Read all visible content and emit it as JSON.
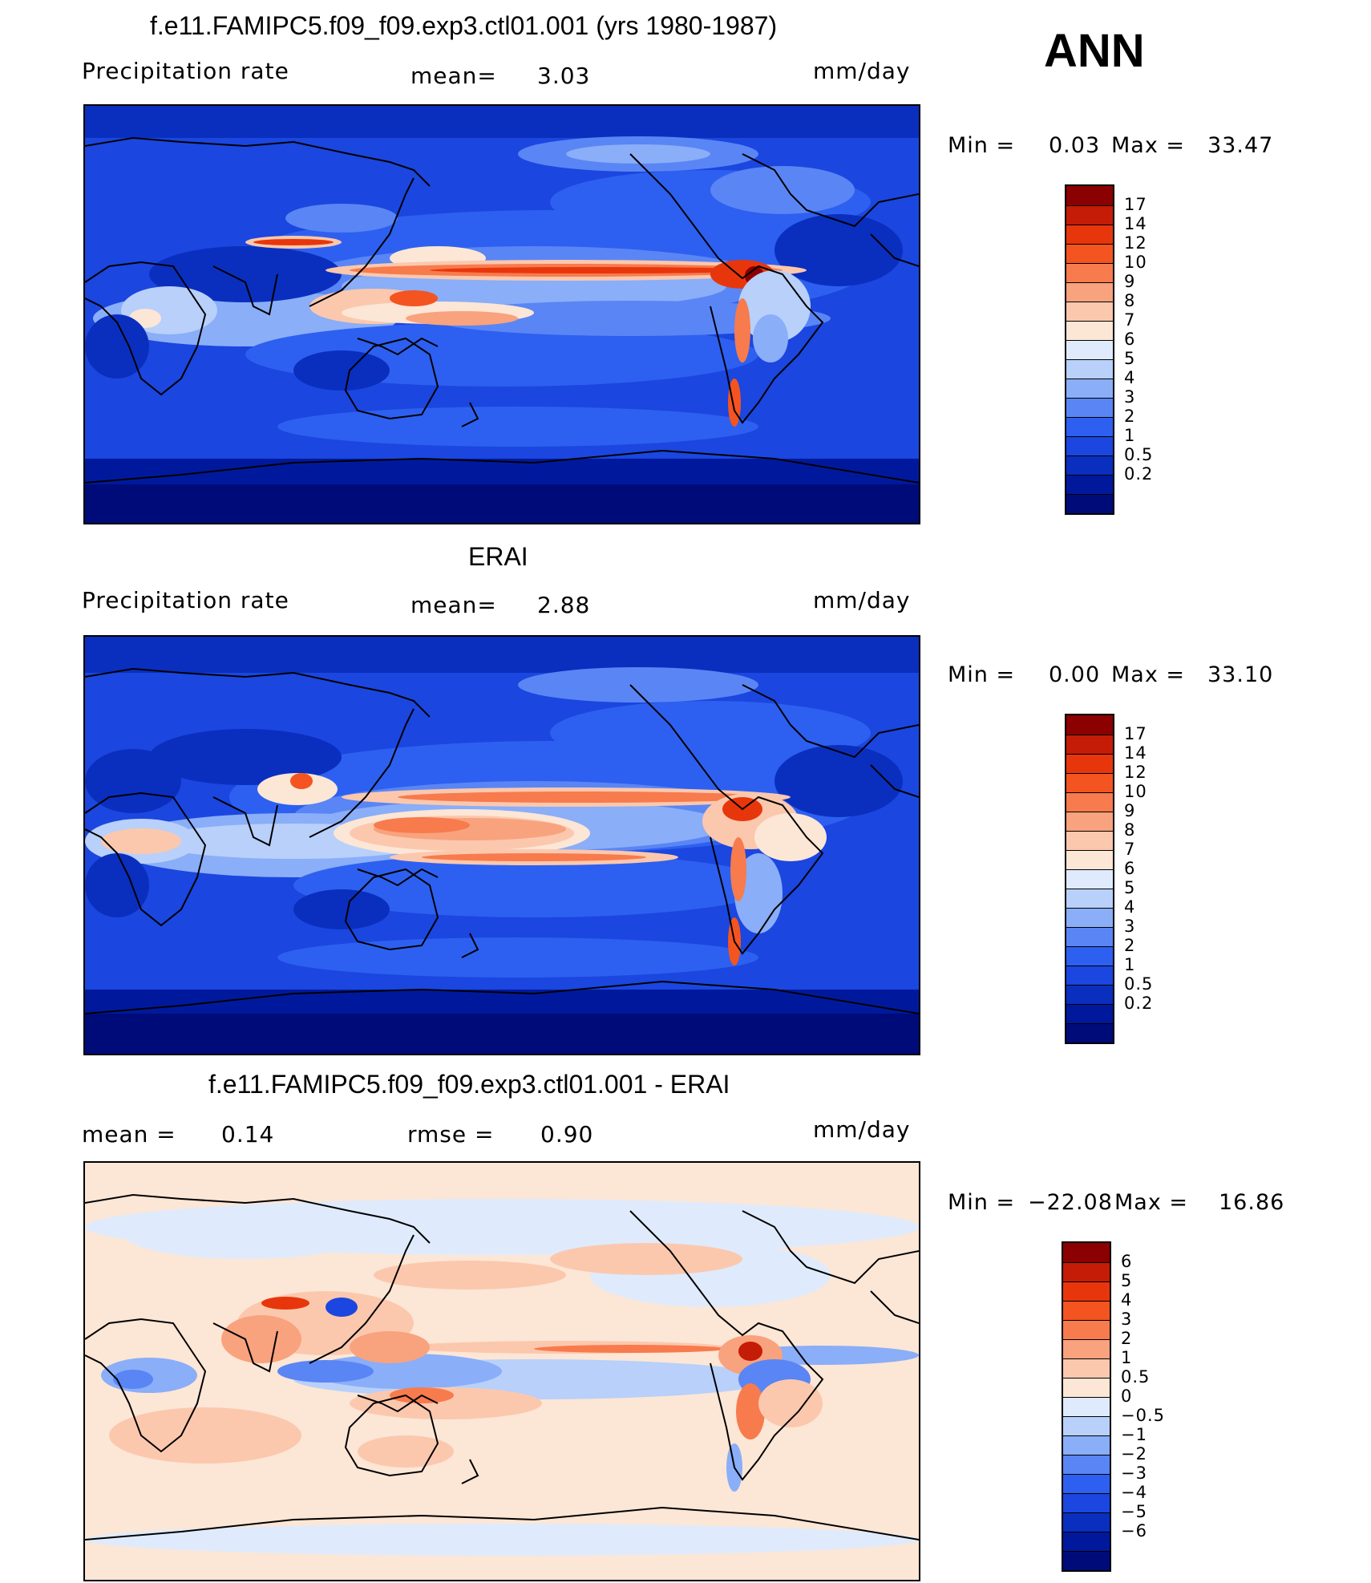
{
  "season": "ANN",
  "units": "mm/day",
  "panels": [
    {
      "title": "f.e11.FAMIPC5.f09_f09.exp3.ctl01.001 (yrs 1980-1987)",
      "left_label": "Precipitation rate",
      "mid_label": "mean=",
      "mid_value": "3.03",
      "right_label": "mm/day",
      "min_label": "Min =",
      "min_value": "0.03",
      "max_label": "Max =",
      "max_value": "33.47",
      "colors": [
        "#000b7a",
        "#00199c",
        "#0a2fbf",
        "#1b46df",
        "#2d60f0",
        "#5a85f5",
        "#8aaef8",
        "#b8d0fa",
        "#dfebfc",
        "#fce6d6",
        "#fbc8ae",
        "#f9a27e",
        "#f77b4d",
        "#f4541f",
        "#e8360c",
        "#c41c06",
        "#8b0000"
      ],
      "labels": [
        "17",
        "14",
        "12",
        "10",
        "9",
        "8",
        "7",
        "6",
        "5",
        "4",
        "3",
        "2",
        "1",
        "0.5",
        "0.2"
      ]
    },
    {
      "title": "ERAI",
      "left_label": "Precipitation rate",
      "mid_label": "mean=",
      "mid_value": "2.88",
      "right_label": "mm/day",
      "min_label": "Min =",
      "min_value": "0.00",
      "max_label": "Max =",
      "max_value": "33.10",
      "colors": [
        "#000b7a",
        "#00199c",
        "#0a2fbf",
        "#1b46df",
        "#2d60f0",
        "#5a85f5",
        "#8aaef8",
        "#b8d0fa",
        "#dfebfc",
        "#fce6d6",
        "#fbc8ae",
        "#f9a27e",
        "#f77b4d",
        "#f4541f",
        "#e8360c",
        "#c41c06",
        "#8b0000"
      ],
      "labels": [
        "17",
        "14",
        "12",
        "10",
        "9",
        "8",
        "7",
        "6",
        "5",
        "4",
        "3",
        "2",
        "1",
        "0.5",
        "0.2"
      ]
    },
    {
      "title": "f.e11.FAMIPC5.f09_f09.exp3.ctl01.001 - ERAI",
      "left_label": "mean =",
      "left_value": "0.14",
      "mid_label": "rmse =",
      "mid_value": "0.90",
      "right_label": "mm/day",
      "min_label": "Min =",
      "min_value": "−22.08",
      "max_label": "Max =",
      "max_value": "16.86",
      "colors": [
        "#000b7a",
        "#00199c",
        "#0a2fbf",
        "#1b46df",
        "#2d60f0",
        "#5a85f5",
        "#8aaef8",
        "#b8d0fa",
        "#dfebfc",
        "#fce6d6",
        "#fbc8ae",
        "#f9a27e",
        "#f77b4d",
        "#f4541f",
        "#e8360c",
        "#c41c06",
        "#8b0000"
      ],
      "labels": [
        "6",
        "5",
        "4",
        "3",
        "2",
        "1",
        "0.5",
        "0",
        "−0.5",
        "−1",
        "−2",
        "−3",
        "−4",
        "−5",
        "−6"
      ]
    }
  ]
}
